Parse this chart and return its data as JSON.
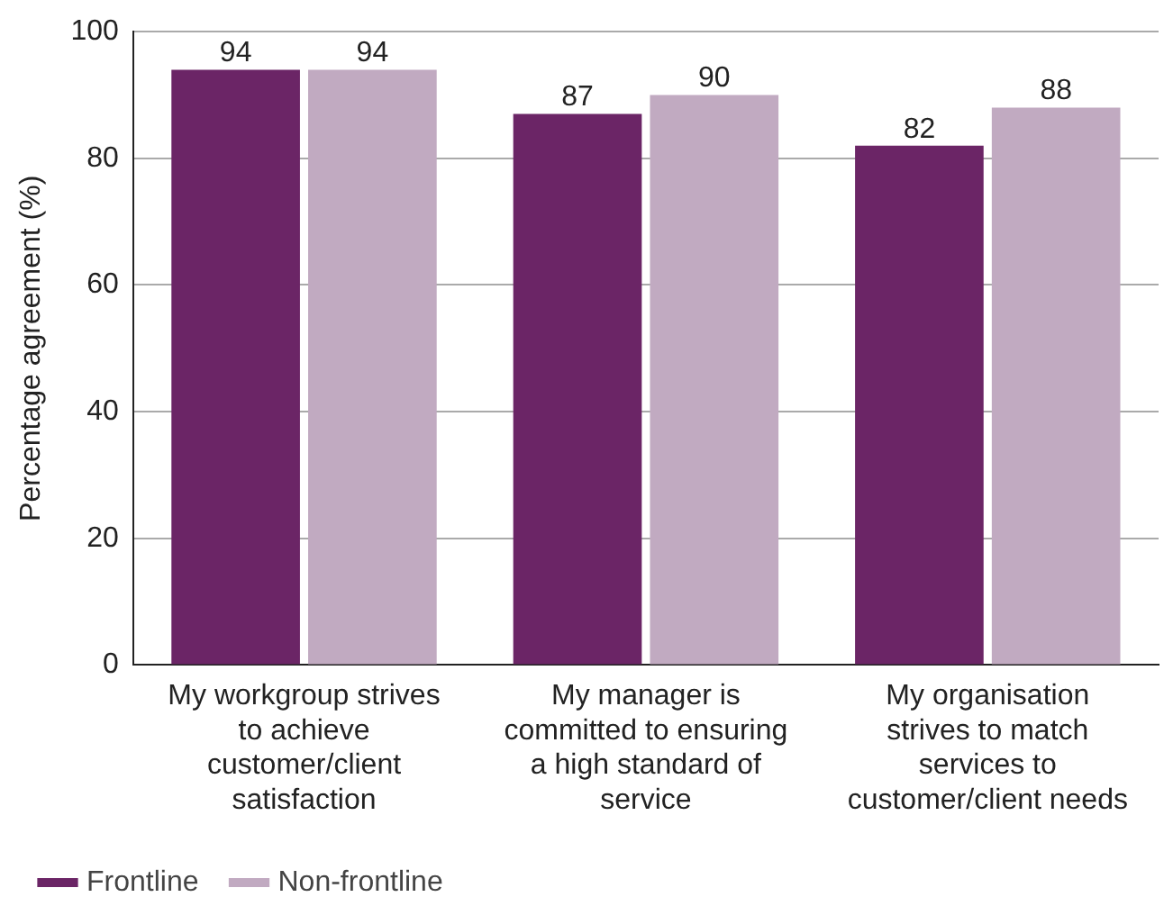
{
  "chart_data": {
    "type": "bar",
    "ylabel": "Percentage agreement (%)",
    "categories": [
      "My workgroup strives to achieve customer/client satisfaction",
      "My manager is committed to ensuring a high standard of service",
      "My organisation strives to match services to customer/client needs"
    ],
    "series": [
      {
        "name": "Frontline",
        "color": "#6b2566",
        "values": [
          94,
          87,
          82
        ]
      },
      {
        "name": "Non-frontline",
        "color": "#c1aac1",
        "values": [
          94,
          90,
          88
        ]
      }
    ],
    "ylim": [
      0,
      100
    ],
    "yticks": [
      0,
      20,
      40,
      60,
      80,
      100
    ],
    "grid": "y",
    "legend": "bottom left",
    "data_labels": true
  }
}
